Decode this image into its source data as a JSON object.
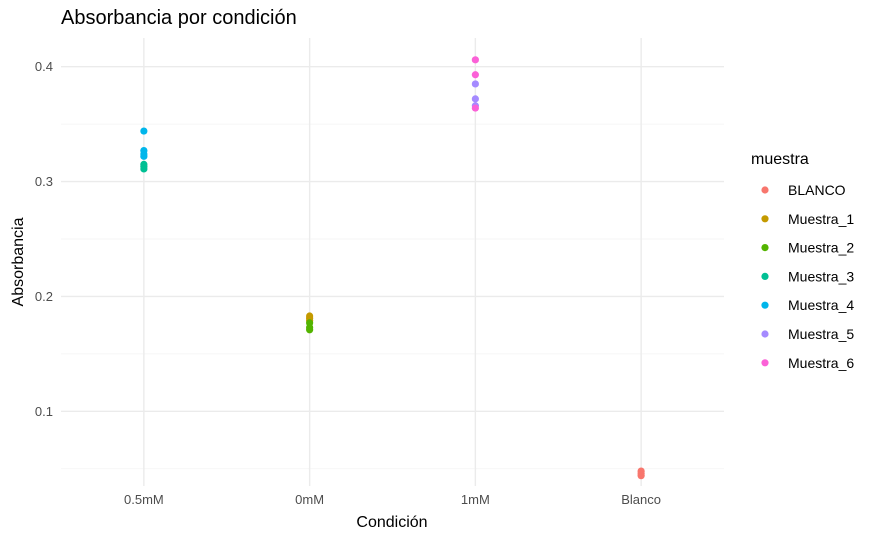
{
  "chart_data": {
    "type": "scatter",
    "title": "Absorbancia por condición",
    "xlabel": "Condición",
    "ylabel": "Absorbancia",
    "categories": [
      "0.5mM",
      "0mM",
      "1mM",
      "Blanco"
    ],
    "ylim": [
      0.035,
      0.425
    ],
    "yticks": [
      0.1,
      0.2,
      0.3,
      0.4
    ],
    "ytick_labels": [
      "0.1",
      "0.2",
      "0.3",
      "0.4"
    ],
    "grid": true,
    "legend": {
      "title": "muestra",
      "position": "right"
    },
    "series": [
      {
        "name": "BLANCO",
        "color": "#F8766D",
        "points": [
          [
            "Blanco",
            0.048
          ],
          [
            "Blanco",
            0.046
          ],
          [
            "Blanco",
            0.044
          ]
        ]
      },
      {
        "name": "Muestra_1",
        "color": "#C49A00",
        "points": [
          [
            "0mM",
            0.183
          ],
          [
            "0mM",
            0.181
          ],
          [
            "0mM",
            0.179
          ]
        ]
      },
      {
        "name": "Muestra_2",
        "color": "#53B400",
        "points": [
          [
            "0mM",
            0.177
          ],
          [
            "0mM",
            0.173
          ],
          [
            "0mM",
            0.171
          ]
        ]
      },
      {
        "name": "Muestra_3",
        "color": "#00C094",
        "points": [
          [
            "0.5mM",
            0.315
          ],
          [
            "0.5mM",
            0.313
          ],
          [
            "0.5mM",
            0.311
          ]
        ]
      },
      {
        "name": "Muestra_4",
        "color": "#00B6EB",
        "points": [
          [
            "0.5mM",
            0.344
          ],
          [
            "0.5mM",
            0.327
          ],
          [
            "0.5mM",
            0.324
          ],
          [
            "0.5mM",
            0.322
          ]
        ]
      },
      {
        "name": "Muestra_5",
        "color": "#A58AFF",
        "points": [
          [
            "1mM",
            0.385
          ],
          [
            "1mM",
            0.372
          ],
          [
            "1mM",
            0.366
          ]
        ]
      },
      {
        "name": "Muestra_6",
        "color": "#FB61D7",
        "points": [
          [
            "1mM",
            0.406
          ],
          [
            "1mM",
            0.393
          ],
          [
            "1mM",
            0.364
          ]
        ]
      }
    ]
  }
}
